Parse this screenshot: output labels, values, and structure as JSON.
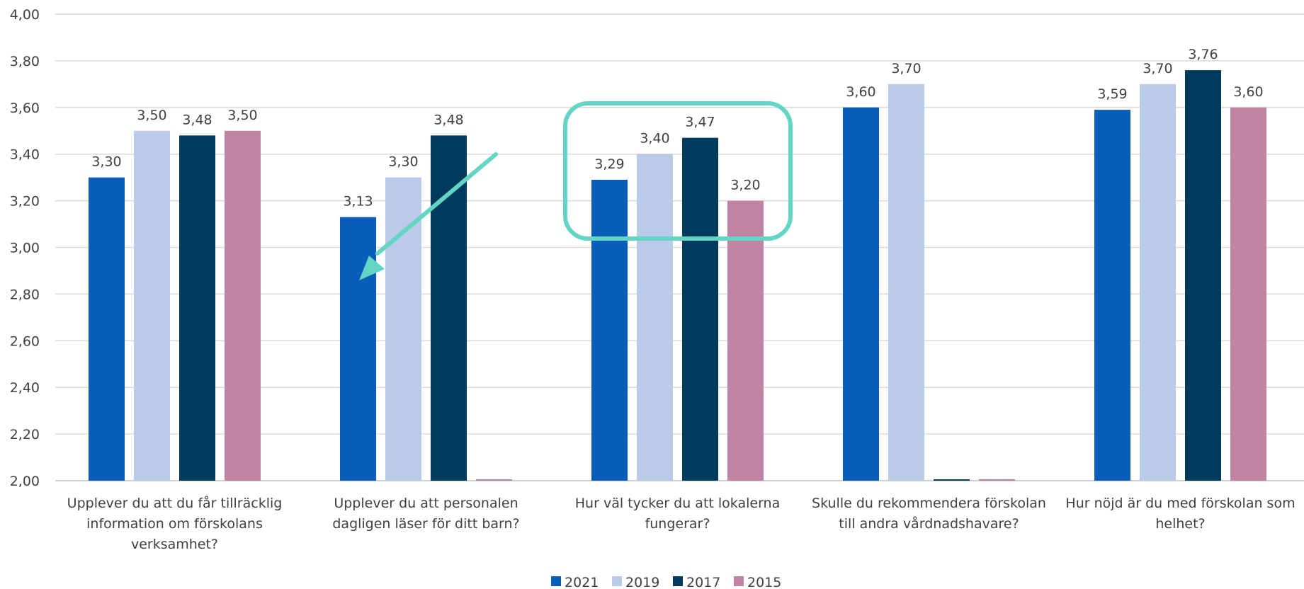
{
  "chart_data": {
    "type": "bar",
    "ylim": [
      2.0,
      4.0
    ],
    "yticks": [
      "2,00",
      "2,20",
      "2,40",
      "2,60",
      "2,80",
      "3,00",
      "3,20",
      "3,40",
      "3,60",
      "3,80",
      "4,00"
    ],
    "grid": true,
    "legend_position": "bottom",
    "categories": [
      "Upplever du att du får tillräcklig information om förskolans verksamhet?",
      "Upplever du att personalen dagligen läser för ditt barn?",
      "Hur väl tycker du att lokalerna fungerar?",
      "Skulle du rekommendera förskolan till andra vårdnadshavare?",
      "Hur nöjd är du med förskolan som helhet?"
    ],
    "category_lines": [
      [
        "Upplever du att du får tillräcklig",
        "information om förskolans",
        "verksamhet?"
      ],
      [
        "Upplever du att personalen",
        "dagligen läser för ditt barn?"
      ],
      [
        "Hur väl tycker du att lokalerna",
        "fungerar?"
      ],
      [
        "Skulle du rekommendera förskolan",
        "till andra vårdnadshavare?"
      ],
      [
        "Hur nöjd är du med förskolan som",
        "helhet?"
      ]
    ],
    "series": [
      {
        "name": "2021",
        "color": "#0b5dbb",
        "values": [
          3.3,
          3.13,
          3.29,
          3.6,
          3.59
        ],
        "labels": [
          "3,30",
          "3,13",
          "3,29",
          "3,60",
          "3,59"
        ]
      },
      {
        "name": "2019",
        "color": "#b9cbe9",
        "values": [
          3.5,
          3.3,
          3.4,
          3.7,
          3.7
        ],
        "labels": [
          "3,50",
          "3,30",
          "3,40",
          "3,70",
          "3,70"
        ]
      },
      {
        "name": "2017",
        "color": "#003a5c",
        "values": [
          3.48,
          3.48,
          3.47,
          null,
          3.76
        ],
        "labels": [
          "3,48",
          "3,48",
          "3,47",
          "",
          "3,76"
        ]
      },
      {
        "name": "2015",
        "color": "#c083a3",
        "values": [
          3.5,
          null,
          3.2,
          null,
          3.6
        ],
        "labels": [
          "3,50",
          "",
          "3,20",
          "",
          "3,60"
        ]
      }
    ],
    "annotations": [
      {
        "type": "arrow",
        "color": "#63d5c5",
        "category": 1
      },
      {
        "type": "highlight-box",
        "color": "#63d5c5",
        "category": 2
      }
    ]
  }
}
